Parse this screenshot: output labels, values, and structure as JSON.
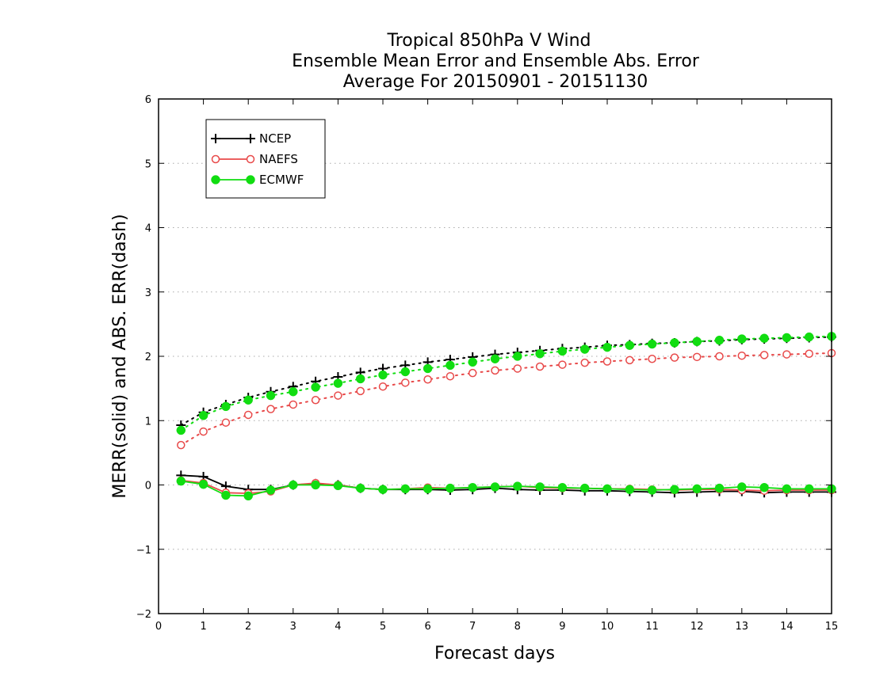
{
  "chart_data": {
    "type": "line",
    "title": [
      "Tropical 850hPa V Wind",
      "Ensemble Mean Error and Ensemble Abs. Error",
      "Average For 20150901 - 20151130"
    ],
    "xlabel": "Forecast days",
    "ylabel": "MERR(solid) and ABS. ERR(dash)",
    "xlim": [
      0,
      15
    ],
    "ylim": [
      -2,
      6
    ],
    "xticks": [
      "0",
      "1",
      "2",
      "3",
      "4",
      "5",
      "6",
      "7",
      "8",
      "9",
      "10",
      "11",
      "12",
      "13",
      "14",
      "15"
    ],
    "yticks": [
      "−2",
      "−1",
      "0",
      "1",
      "2",
      "3",
      "4",
      "5",
      "6"
    ],
    "grid": "horizontal dotted",
    "legend_position": "top-left",
    "x": [
      0.5,
      1,
      1.5,
      2,
      2.5,
      3,
      3.5,
      4,
      4.5,
      5,
      5.5,
      6,
      6.5,
      7,
      7.5,
      8,
      8.5,
      9,
      9.5,
      10,
      10.5,
      11,
      11.5,
      12,
      12.5,
      13,
      13.5,
      14,
      14.5,
      15
    ],
    "series": [
      {
        "name": "NCEP",
        "color": "#000000",
        "marker": "plus",
        "merr": [
          0.15,
          0.13,
          -0.02,
          -0.07,
          -0.07,
          0.0,
          0.02,
          0.0,
          -0.05,
          -0.07,
          -0.07,
          -0.07,
          -0.08,
          -0.07,
          -0.05,
          -0.07,
          -0.08,
          -0.08,
          -0.09,
          -0.09,
          -0.1,
          -0.11,
          -0.12,
          -0.11,
          -0.1,
          -0.1,
          -0.12,
          -0.11,
          -0.11,
          -0.11
        ],
        "abserr": [
          0.93,
          1.13,
          1.25,
          1.36,
          1.45,
          1.53,
          1.61,
          1.68,
          1.75,
          1.81,
          1.86,
          1.91,
          1.95,
          1.99,
          2.03,
          2.06,
          2.09,
          2.12,
          2.14,
          2.17,
          2.18,
          2.2,
          2.21,
          2.23,
          2.24,
          2.26,
          2.27,
          2.28,
          2.29,
          2.3
        ]
      },
      {
        "name": "NAEFS",
        "color": "#e84a4a",
        "marker": "open-circle",
        "merr": [
          0.07,
          0.03,
          -0.12,
          -0.13,
          -0.1,
          0.0,
          0.03,
          0.0,
          -0.05,
          -0.07,
          -0.06,
          -0.04,
          -0.05,
          -0.04,
          -0.03,
          -0.02,
          -0.04,
          -0.05,
          -0.05,
          -0.06,
          -0.06,
          -0.07,
          -0.08,
          -0.07,
          -0.07,
          -0.08,
          -0.09,
          -0.08,
          -0.08,
          -0.08
        ],
        "abserr": [
          0.62,
          0.83,
          0.97,
          1.09,
          1.18,
          1.25,
          1.32,
          1.39,
          1.46,
          1.53,
          1.59,
          1.64,
          1.69,
          1.74,
          1.78,
          1.81,
          1.84,
          1.87,
          1.9,
          1.92,
          1.94,
          1.96,
          1.98,
          1.99,
          2.0,
          2.01,
          2.02,
          2.03,
          2.04,
          2.05
        ]
      },
      {
        "name": "ECMWF",
        "color": "#11dd11",
        "marker": "filled-circle",
        "merr": [
          0.06,
          0.01,
          -0.16,
          -0.17,
          -0.08,
          0.0,
          0.0,
          -0.01,
          -0.05,
          -0.07,
          -0.06,
          -0.06,
          -0.05,
          -0.04,
          -0.03,
          -0.02,
          -0.03,
          -0.04,
          -0.05,
          -0.06,
          -0.07,
          -0.08,
          -0.07,
          -0.06,
          -0.05,
          -0.03,
          -0.04,
          -0.06,
          -0.06,
          -0.06
        ],
        "abserr": [
          0.85,
          1.08,
          1.22,
          1.32,
          1.39,
          1.45,
          1.52,
          1.58,
          1.65,
          1.71,
          1.76,
          1.81,
          1.86,
          1.91,
          1.96,
          2.0,
          2.04,
          2.08,
          2.11,
          2.14,
          2.17,
          2.19,
          2.21,
          2.23,
          2.25,
          2.27,
          2.28,
          2.29,
          2.3,
          2.31
        ]
      }
    ]
  }
}
